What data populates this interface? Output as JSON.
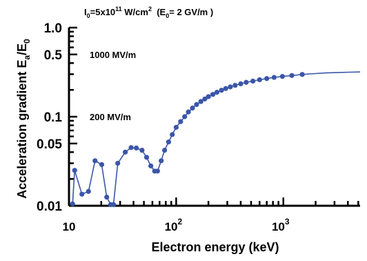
{
  "chart_data": {
    "type": "line",
    "title_main": "I",
    "title_sub": "0",
    "title_rest": "=5x10",
    "title_exp": "11",
    "title_units": " W/cm",
    "title_units_exp": "2",
    "title_paren_open": "  (E",
    "title_paren_sub": "0",
    "title_paren_rest": "= 2 GV/m )",
    "ylabel_main": "Acceleration gradient E",
    "ylabel_sub_a": "a",
    "ylabel_slash": "/E",
    "ylabel_sub_0": "0",
    "xlabel": "Electron energy (keV)",
    "x_scale": "log",
    "y_scale": "log",
    "xlim": [
      10,
      5200
    ],
    "ylim": [
      0.01,
      1.0
    ],
    "x_tick_labels": [
      {
        "value": 10,
        "base": "10",
        "exp": ""
      },
      {
        "value": 100,
        "base": "10",
        "exp": "2"
      },
      {
        "value": 1000,
        "base": "10",
        "exp": "3"
      }
    ],
    "y_tick_labels": [
      {
        "value": 1.0,
        "label": "1.0"
      },
      {
        "value": 0.5,
        "label": "0.5"
      },
      {
        "value": 0.1,
        "label": "0.1"
      },
      {
        "value": 0.05,
        "label": "0.05"
      },
      {
        "value": 0.01,
        "label": "0.01"
      }
    ],
    "annotations": [
      {
        "text": "1000 MV/m",
        "y": 0.5
      },
      {
        "text": "200 MV/m",
        "y": 0.1
      }
    ],
    "series": [
      {
        "color": "#3a56a8",
        "points": [
          [
            10.8,
            0.0105
          ],
          [
            11.3,
            0.025
          ],
          [
            13.2,
            0.0135
          ],
          [
            15.2,
            0.0145
          ],
          [
            17.5,
            0.032
          ],
          [
            20.2,
            0.029
          ],
          [
            22.5,
            0.0125
          ],
          [
            24.5,
            0.0103
          ],
          [
            26.0,
            0.0103
          ],
          [
            28.5,
            0.03
          ],
          [
            33.5,
            0.04
          ],
          [
            38.0,
            0.045
          ],
          [
            42.5,
            0.0445
          ],
          [
            48.0,
            0.042
          ],
          [
            53.0,
            0.035
          ],
          [
            58.0,
            0.028
          ],
          [
            63.0,
            0.0245
          ],
          [
            67.0,
            0.0245
          ],
          [
            72.5,
            0.032
          ],
          [
            78.0,
            0.042
          ],
          [
            85.0,
            0.052
          ],
          [
            92.0,
            0.063
          ],
          [
            100.0,
            0.076
          ],
          [
            110.0,
            0.088
          ],
          [
            120.0,
            0.1
          ],
          [
            130.0,
            0.113
          ],
          [
            142.0,
            0.125
          ],
          [
            155.0,
            0.137
          ],
          [
            170.0,
            0.148
          ],
          [
            185.0,
            0.158
          ],
          [
            200.0,
            0.168
          ],
          [
            220.0,
            0.178
          ],
          [
            240.0,
            0.188
          ],
          [
            265.0,
            0.198
          ],
          [
            290.0,
            0.207
          ],
          [
            320.0,
            0.216
          ],
          [
            355.0,
            0.225
          ],
          [
            400.0,
            0.234
          ],
          [
            450.0,
            0.243
          ],
          [
            520.0,
            0.251
          ],
          [
            600.0,
            0.26
          ],
          [
            700.0,
            0.268
          ],
          [
            820.0,
            0.276
          ],
          [
            980.0,
            0.283
          ],
          [
            1200.0,
            0.29
          ],
          [
            1500.0,
            0.298
          ]
        ],
        "curve": [
          [
            1500.0,
            0.298
          ],
          [
            2000.0,
            0.305
          ],
          [
            2500.0,
            0.31
          ],
          [
            3200.0,
            0.313
          ],
          [
            4200.0,
            0.316
          ],
          [
            5200.0,
            0.318
          ]
        ]
      }
    ]
  }
}
